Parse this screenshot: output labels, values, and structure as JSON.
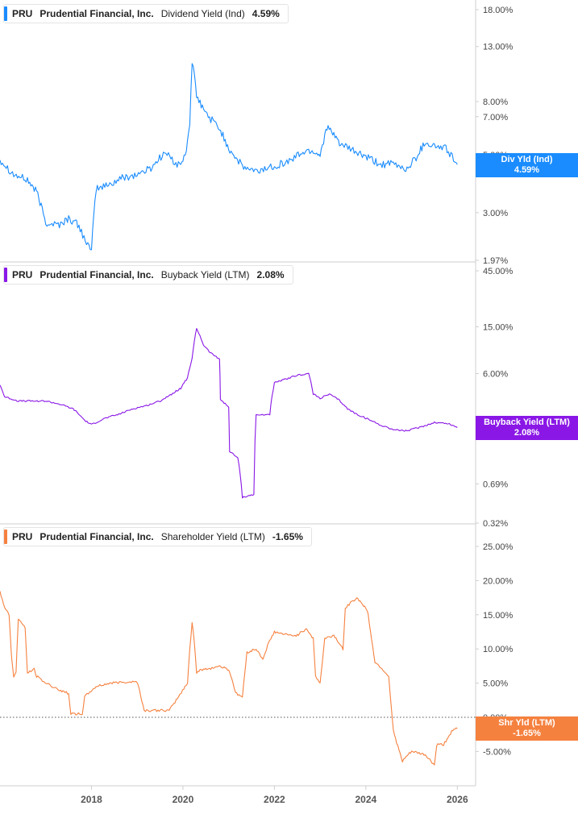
{
  "chart_data": [
    {
      "type": "line",
      "symbol": "PRU",
      "company": "Prudential Financial, Inc.",
      "metric": "Dividend Yield (Ind)",
      "current_value": "4.59%",
      "badge_label": "Div Yld (Ind)",
      "badge_value": "4.59%",
      "color": "#1a8cff",
      "yscale": "log",
      "ylim": [
        1.97,
        18.0
      ],
      "ticks": [
        {
          "value": 18,
          "label": "18.00%"
        },
        {
          "value": 13,
          "label": "13.00%"
        },
        {
          "value": 8,
          "label": "8.00%"
        },
        {
          "value": 7,
          "label": "7.00%"
        },
        {
          "value": 5,
          "label": "5.00%"
        },
        {
          "value": 3,
          "label": "3.00%"
        },
        {
          "value": 1.97,
          "label": "1.97%"
        }
      ],
      "x": [
        2016.0,
        2016.3,
        2016.6,
        2016.8,
        2017.0,
        2017.3,
        2017.5,
        2017.7,
        2018.0,
        2018.1,
        2018.4,
        2018.7,
        2019.0,
        2019.3,
        2019.6,
        2019.9,
        2020.05,
        2020.15,
        2020.2,
        2020.3,
        2020.5,
        2020.8,
        2021.0,
        2021.3,
        2021.6,
        2022.0,
        2022.3,
        2022.6,
        2022.8,
        2023.0,
        2023.15,
        2023.3,
        2023.5,
        2023.8,
        2024.0,
        2024.3,
        2024.6,
        2024.9,
        2025.1,
        2025.3,
        2025.5,
        2025.75,
        2026.0
      ],
      "y": [
        4.8,
        4.2,
        4.0,
        3.6,
        2.75,
        2.7,
        2.85,
        2.7,
        2.1,
        3.7,
        3.85,
        4.1,
        4.2,
        4.45,
        5.1,
        4.55,
        4.9,
        6.5,
        11.5,
        8.3,
        7.2,
        6.3,
        5.3,
        4.5,
        4.3,
        4.55,
        4.7,
        5.1,
        5.2,
        5.0,
        6.4,
        5.9,
        5.4,
        5.1,
        4.9,
        4.6,
        4.6,
        4.4,
        4.9,
        5.6,
        5.4,
        5.3,
        4.59
      ]
    },
    {
      "type": "line",
      "symbol": "PRU",
      "company": "Prudential Financial, Inc.",
      "metric": "Buyback Yield (LTM)",
      "current_value": "2.08%",
      "badge_label": "Buyback Yield (LTM)",
      "badge_value": "2.08%",
      "color": "#8a17e6",
      "yscale": "log",
      "ylim": [
        0.32,
        45.0
      ],
      "ticks": [
        {
          "value": 45,
          "label": "45.00%"
        },
        {
          "value": 15,
          "label": "15.00%"
        },
        {
          "value": 6,
          "label": "6.00%"
        },
        {
          "value": 0.69,
          "label": "0.69%"
        },
        {
          "value": 0.32,
          "label": "0.32%"
        }
      ],
      "x": [
        2016.0,
        2016.1,
        2016.4,
        2016.7,
        2017.0,
        2017.3,
        2017.6,
        2017.85,
        2018.0,
        2018.3,
        2018.6,
        2018.9,
        2019.2,
        2019.5,
        2019.75,
        2019.95,
        2020.1,
        2020.2,
        2020.3,
        2020.45,
        2020.6,
        2020.8,
        2020.82,
        2021.0,
        2021.02,
        2021.2,
        2021.3,
        2021.55,
        2021.6,
        2021.9,
        2022.0,
        2022.2,
        2022.5,
        2022.75,
        2022.85,
        2023.0,
        2023.2,
        2023.4,
        2023.6,
        2023.8,
        2024.0,
        2024.3,
        2024.6,
        2024.9,
        2025.2,
        2025.5,
        2025.8,
        2026.0
      ],
      "y": [
        4.8,
        3.8,
        3.5,
        3.5,
        3.5,
        3.3,
        3.0,
        2.4,
        2.2,
        2.5,
        2.7,
        3.0,
        3.2,
        3.5,
        4.0,
        4.5,
        5.5,
        8.0,
        14.5,
        10.5,
        9.0,
        8.0,
        3.6,
        3.1,
        1.3,
        1.15,
        0.53,
        0.56,
        2.65,
        2.7,
        5.0,
        5.3,
        5.8,
        6.0,
        4.0,
        3.7,
        4.0,
        3.6,
        3.0,
        2.7,
        2.5,
        2.2,
        2.0,
        1.95,
        2.1,
        2.3,
        2.25,
        2.08
      ]
    },
    {
      "type": "line",
      "symbol": "PRU",
      "company": "Prudential Financial, Inc.",
      "metric": "Shareholder Yield (LTM)",
      "current_value": "-1.65%",
      "badge_label": "Shr Yld (LTM)",
      "badge_value": "-1.65%",
      "color": "#f5813f",
      "yscale": "linear",
      "ylim": [
        -10.0,
        25.0
      ],
      "ticks": [
        {
          "value": 25,
          "label": "25.00%"
        },
        {
          "value": 20,
          "label": "20.00%"
        },
        {
          "value": 15,
          "label": "15.00%"
        },
        {
          "value": 10,
          "label": "10.00%"
        },
        {
          "value": 5,
          "label": "5.00%"
        },
        {
          "value": 0,
          "label": "0.00%"
        },
        {
          "value": -5,
          "label": "-5.00%"
        }
      ],
      "x": [
        2016.0,
        2016.1,
        2016.2,
        2016.25,
        2016.3,
        2016.35,
        2016.4,
        2016.55,
        2016.6,
        2016.75,
        2016.8,
        2017.0,
        2017.3,
        2017.5,
        2017.55,
        2017.8,
        2017.85,
        2018.1,
        2018.4,
        2018.8,
        2019.0,
        2019.05,
        2019.15,
        2019.4,
        2019.7,
        2019.8,
        2020.1,
        2020.15,
        2020.2,
        2020.25,
        2020.3,
        2020.4,
        2020.5,
        2020.8,
        2021.0,
        2021.1,
        2021.15,
        2021.3,
        2021.4,
        2021.6,
        2021.75,
        2021.85,
        2022.0,
        2022.3,
        2022.5,
        2022.7,
        2022.85,
        2022.9,
        2023.0,
        2023.1,
        2023.3,
        2023.5,
        2023.55,
        2023.8,
        2024.0,
        2024.05,
        2024.2,
        2024.3,
        2024.5,
        2024.6,
        2024.8,
        2024.85,
        2025.0,
        2025.3,
        2025.5,
        2025.55,
        2025.7,
        2025.9,
        2026.0
      ],
      "y": [
        18.5,
        16.0,
        15.0,
        9.0,
        6.0,
        6.5,
        14.5,
        13.0,
        6.5,
        7.0,
        6.0,
        5.0,
        4.0,
        3.5,
        0.5,
        0.5,
        3.0,
        4.5,
        5.0,
        5.2,
        5.2,
        4.0,
        1.0,
        1.0,
        1.0,
        2.0,
        5.0,
        10.0,
        14.0,
        11.0,
        6.5,
        7.0,
        7.0,
        7.5,
        7.0,
        5.0,
        3.5,
        3.0,
        9.5,
        10.0,
        8.5,
        10.5,
        12.5,
        12.0,
        12.0,
        13.0,
        11.5,
        6.0,
        5.0,
        11.5,
        12.0,
        10.0,
        16.0,
        17.5,
        16.0,
        15.0,
        8.0,
        7.5,
        6.0,
        -2.0,
        -6.5,
        -6.0,
        -5.0,
        -5.5,
        -7.0,
        -4.0,
        -4.0,
        -1.8,
        -1.65
      ]
    }
  ],
  "x_axis": {
    "range": [
      2016.0,
      2026.4
    ],
    "ticks": [
      {
        "value": 2018,
        "label": "2018"
      },
      {
        "value": 2020,
        "label": "2020"
      },
      {
        "value": 2022,
        "label": "2022"
      },
      {
        "value": 2024,
        "label": "2024"
      },
      {
        "value": 2026,
        "label": "2026"
      }
    ]
  }
}
